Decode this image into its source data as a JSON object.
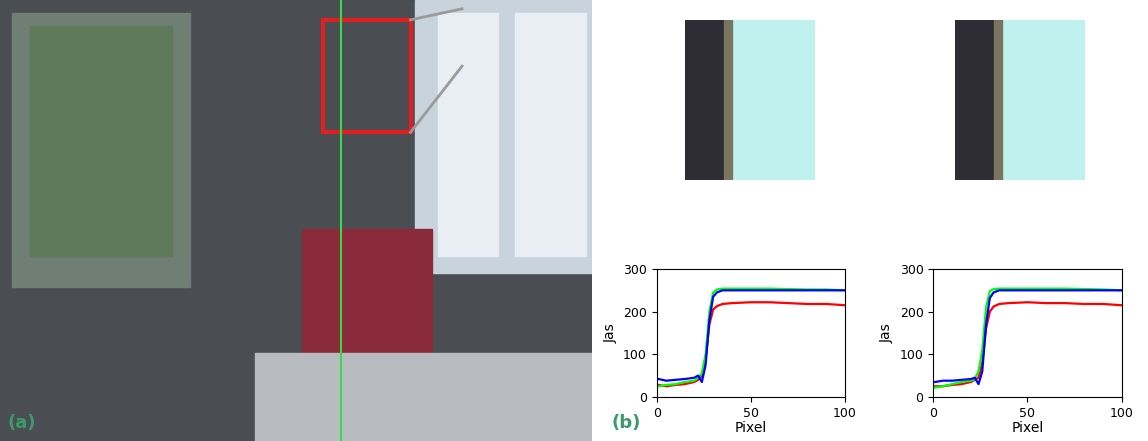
{
  "panel_labels": [
    "(a)",
    "(b)"
  ],
  "chart_data": [
    {
      "type": "line",
      "x_label": "Pixel",
      "y_label": "Jas",
      "x": [
        1,
        5,
        10,
        15,
        20,
        22,
        24,
        26,
        28,
        30,
        32,
        35,
        40,
        50,
        60,
        70,
        80,
        90,
        100
      ],
      "xlim": [
        0,
        100
      ],
      "xticks": [
        0,
        50,
        100
      ],
      "ylim": [
        0,
        300
      ],
      "yticks": [
        0,
        100,
        200,
        300
      ],
      "series": [
        {
          "color": "#ff0000",
          "values": [
            28,
            25,
            28,
            30,
            35,
            40,
            50,
            90,
            170,
            205,
            213,
            218,
            220,
            222,
            222,
            220,
            218,
            218,
            215
          ]
        },
        {
          "color": "#00ff00",
          "values": [
            25,
            28,
            30,
            35,
            38,
            45,
            55,
            100,
            200,
            245,
            252,
            254,
            254,
            254,
            254,
            253,
            252,
            252,
            250
          ]
        },
        {
          "color": "#0000ff",
          "values": [
            42,
            38,
            40,
            42,
            45,
            50,
            35,
            75,
            180,
            235,
            245,
            250,
            250,
            250,
            250,
            250,
            250,
            250,
            250
          ]
        }
      ]
    },
    {
      "type": "line",
      "x_label": "Pixel",
      "y_label": "Jas",
      "x": [
        1,
        5,
        10,
        15,
        20,
        22,
        24,
        26,
        28,
        30,
        32,
        35,
        40,
        50,
        60,
        70,
        80,
        90,
        100
      ],
      "xlim": [
        0,
        100
      ],
      "xticks": [
        0,
        50,
        100
      ],
      "ylim": [
        0,
        300
      ],
      "yticks": [
        0,
        100,
        200,
        300
      ],
      "series": [
        {
          "color": "#ff0000",
          "values": [
            25,
            25,
            28,
            30,
            35,
            40,
            45,
            80,
            160,
            200,
            212,
            218,
            220,
            222,
            220,
            220,
            218,
            218,
            215
          ]
        },
        {
          "color": "#00ff00",
          "values": [
            22,
            25,
            30,
            35,
            38,
            42,
            60,
            110,
            210,
            248,
            253,
            254,
            254,
            254,
            254,
            254,
            253,
            252,
            250
          ]
        },
        {
          "color": "#0000ff",
          "values": [
            35,
            38,
            38,
            40,
            42,
            45,
            30,
            60,
            170,
            232,
            245,
            250,
            250,
            250,
            250,
            250,
            250,
            250,
            250
          ]
        }
      ]
    }
  ]
}
